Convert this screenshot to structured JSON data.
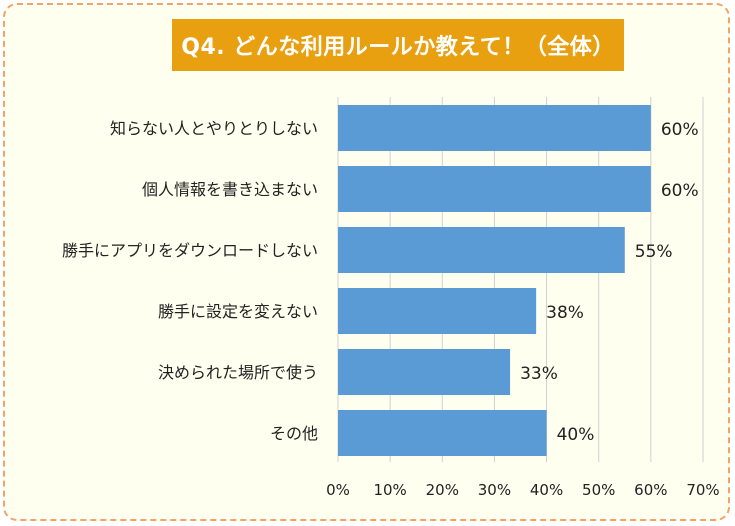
{
  "chart_data": {
    "type": "bar",
    "orientation": "horizontal",
    "title": "Q4. どんな利用ルールか教えて！（全体）",
    "categories": [
      "知らない人とやりとりしない",
      "個人情報を書き込まない",
      "勝手にアプリをダウンロードしない",
      "勝手に設定を変えない",
      "決められた場所で使う",
      "その他"
    ],
    "values": [
      60,
      60,
      55,
      38,
      33,
      40
    ],
    "value_labels": [
      "60%",
      "60%",
      "55%",
      "38%",
      "33%",
      "40%"
    ],
    "xlim": [
      0,
      70
    ],
    "x_ticks": [
      0,
      10,
      20,
      30,
      40,
      50,
      60,
      70
    ],
    "x_tick_labels": [
      "0%",
      "10%",
      "20%",
      "30%",
      "40%",
      "50%",
      "60%",
      "70%"
    ],
    "grid": true,
    "bar_color": "#5b9bd5",
    "title_bg_color": "#e89f10",
    "border_color": "#f1a46a",
    "background_color": "#fffff0"
  }
}
